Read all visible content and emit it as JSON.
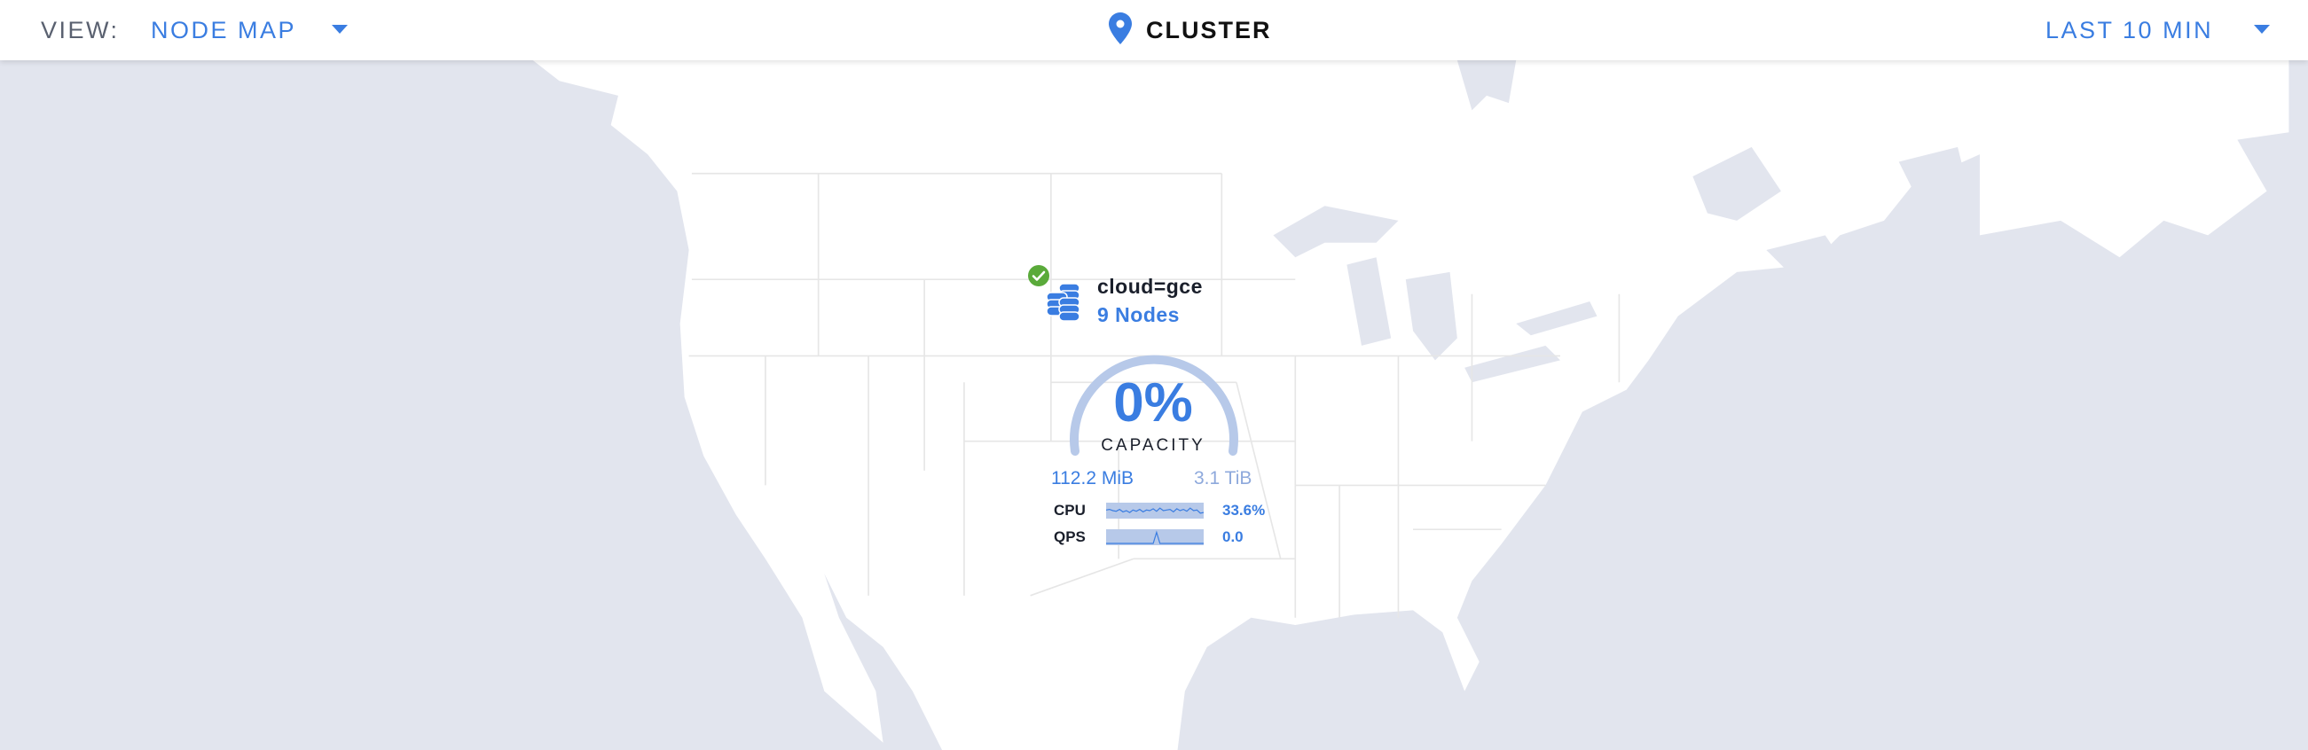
{
  "header": {
    "view_label": "VIEW:",
    "view_value": "NODE MAP",
    "title": "CLUSTER",
    "time_range": "LAST 10 MIN"
  },
  "icons": {
    "view_dropdown": "caret-down-icon",
    "title": "map-pin-icon",
    "time_dropdown": "caret-down-icon",
    "status": "check-circle-icon",
    "locality": "database-stack-icon"
  },
  "locality": {
    "name": "cloud=gce",
    "nodes": "9 Nodes",
    "status": "healthy",
    "capacity_percent": "0%",
    "capacity_label": "CAPACITY",
    "capacity_fraction": 0,
    "used": "112.2 MiB",
    "total": "3.1 TiB",
    "metrics": [
      {
        "label": "CPU",
        "value": "33.6%",
        "series": [
          0.55,
          0.6,
          0.5,
          0.45,
          0.6,
          0.4,
          0.5,
          0.35,
          0.55,
          0.45,
          0.6,
          0.4,
          0.55,
          0.5,
          0.65,
          0.45,
          0.7,
          0.5,
          0.55,
          0.6,
          0.4,
          0.65,
          0.5,
          0.6,
          0.45,
          0.7,
          0.5,
          0.55,
          0.3,
          0.35
        ]
      },
      {
        "label": "QPS",
        "value": "0.0",
        "series": [
          0,
          0,
          0,
          0,
          0,
          0,
          0,
          0,
          0,
          0,
          0,
          0,
          0,
          0,
          0,
          0.9,
          0,
          0,
          0,
          0,
          0,
          0,
          0,
          0,
          0,
          0,
          0,
          0,
          0,
          0
        ]
      }
    ]
  },
  "colors": {
    "accent": "#3a7de1",
    "arc": "#b7c9e9",
    "spark_bg": "#b7c9e9",
    "ok": "#5aaa3a",
    "water": "#e2e5ee",
    "land": "#ffffff"
  }
}
